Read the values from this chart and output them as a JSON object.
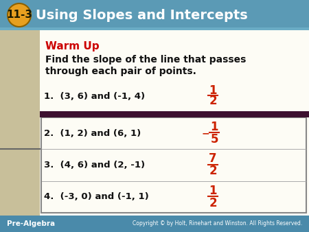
{
  "fig_w": 4.5,
  "fig_h": 3.38,
  "dpi": 100,
  "header_bg": "#5b9ab5",
  "header_text": "Using Slopes and Intercepts",
  "header_num": "11-3",
  "header_num_bg": "#e8a020",
  "warm_up_color": "#cc0000",
  "body_bg": "#f5f2e8",
  "sidebar_bg": "#c8bf9a",
  "content_bg": "#fdfcf5",
  "dark_bar_color": "#3d1030",
  "question_color": "#111111",
  "answer_color": "#cc2200",
  "footer_bg": "#4a8aaa",
  "footer_left": "Pre-Algebra",
  "footer_right": "Copyright © by Holt, Rinehart and Winston. All Rights Reserved.",
  "warm_up_label": "Warm Up",
  "instruction_lines": [
    "Find the slope of the line that passes",
    "through each pair of points."
  ],
  "questions": [
    "1.  (3, 6) and (-1, 4)",
    "2.  (1, 2) and (6, 1)",
    "3.  (4, 6) and (2, -1)",
    "4.  (-3, 0) and (-1, 1)"
  ],
  "answer_nums": [
    [
      "1",
      "2"
    ],
    [
      "1",
      "5"
    ],
    [
      "7",
      "2"
    ],
    [
      "1",
      "2"
    ]
  ],
  "answer_neg": [
    false,
    true,
    false,
    false
  ]
}
